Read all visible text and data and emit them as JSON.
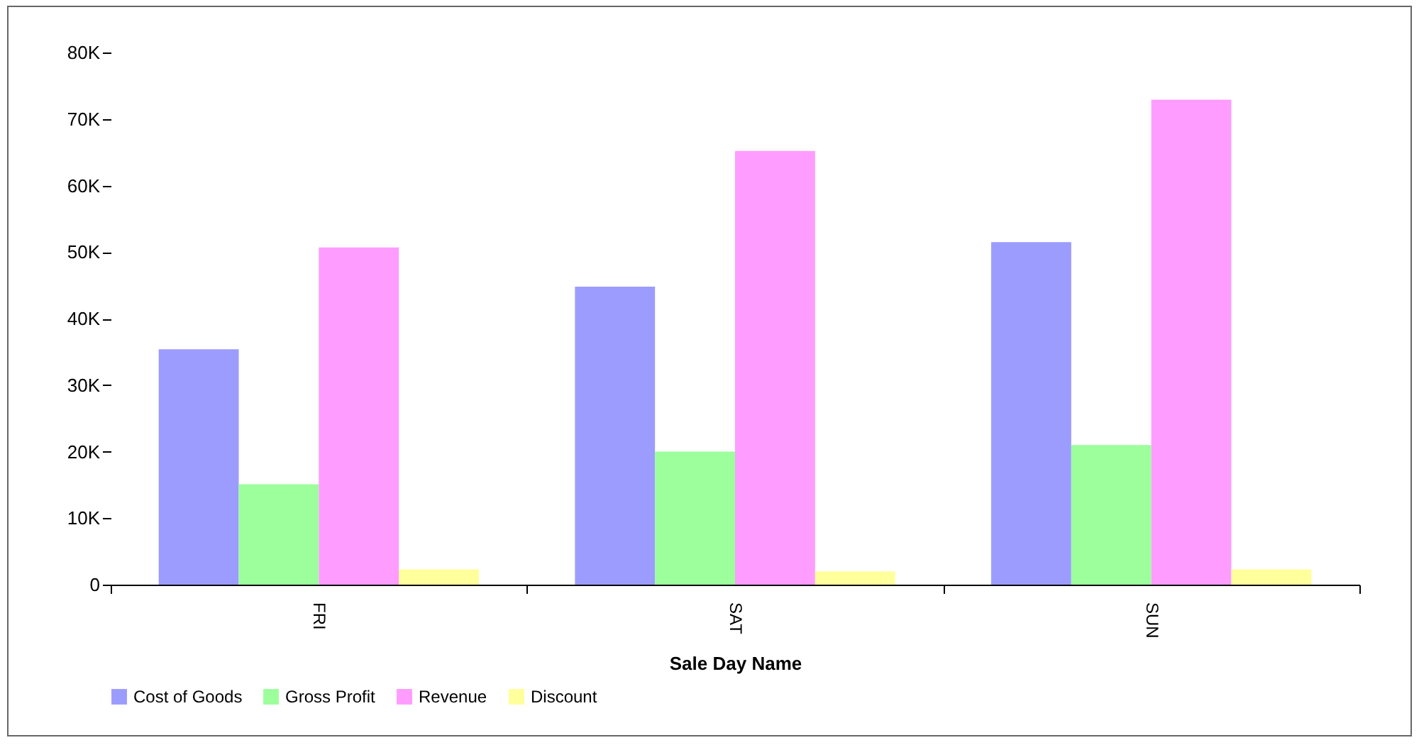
{
  "chart_data": {
    "type": "bar",
    "xlabel": "Sale Day Name",
    "categories": [
      "FRI",
      "SAT",
      "SUN"
    ],
    "series": [
      {
        "name": "Cost of Goods",
        "color": "#9c9cff",
        "values": [
          35.4,
          44.8,
          51.5
        ]
      },
      {
        "name": "Gross Profit",
        "color": "#9cff9c",
        "values": [
          15.1,
          20.0,
          21.0
        ]
      },
      {
        "name": "Revenue",
        "color": "#ff9cff",
        "values": [
          50.7,
          65.2,
          72.9
        ]
      },
      {
        "name": "Discount",
        "color": "#ffff9c",
        "values": [
          2.3,
          2.0,
          2.3
        ]
      }
    ],
    "ylim": [
      0,
      80
    ],
    "yticks": [
      0,
      {
        "value": 10,
        "label": "10K"
      },
      {
        "value": 20,
        "label": "20K"
      },
      {
        "value": 30,
        "label": "30K"
      },
      {
        "value": 40,
        "label": "40K"
      },
      {
        "value": 50,
        "label": "50K"
      },
      {
        "value": 60,
        "label": "60K"
      },
      {
        "value": 70,
        "label": "70K"
      },
      {
        "value": 80,
        "label": "80K"
      }
    ],
    "grid": false,
    "legend": "bottom"
  }
}
